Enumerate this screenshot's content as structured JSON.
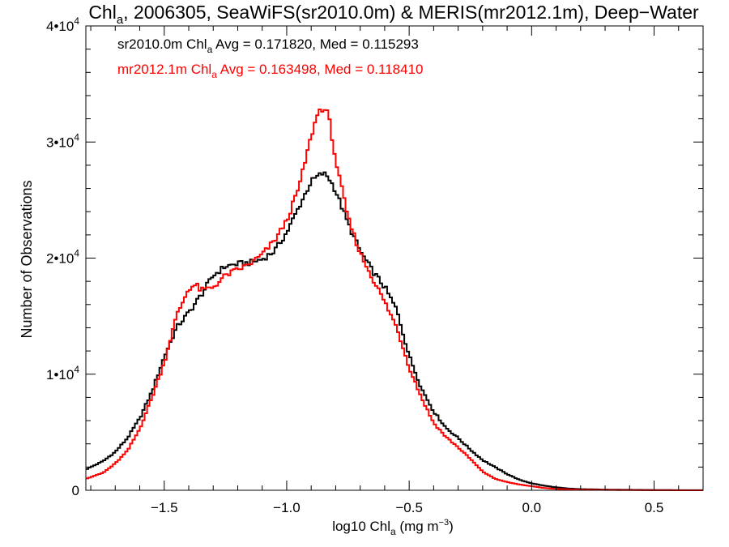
{
  "chart_data": {
    "type": "line",
    "title": {
      "part1": "Chl",
      "sub": "a",
      "part2": ", 2006305, SeaWiFS(sr2010.0m) & MERIS(mr2012.1m), Deep−Water"
    },
    "xlabel": {
      "pre": "log10 Chl",
      "sub": "a",
      "post": " (mg m",
      "sup": "−3",
      "end": ")"
    },
    "ylabel": "Number of Observations",
    "xlim": [
      -1.82,
      0.7
    ],
    "ylim": [
      0,
      40000
    ],
    "xticks": [
      {
        "value": -1.5,
        "label": "−1.5"
      },
      {
        "value": -1.0,
        "label": "−1.0"
      },
      {
        "value": -0.5,
        "label": "−0.5"
      },
      {
        "value": 0.0,
        "label": "0.0"
      },
      {
        "value": 0.5,
        "label": "0.5"
      }
    ],
    "yticks": [
      {
        "value": 0,
        "label": "0",
        "sup": ""
      },
      {
        "value": 10000,
        "label": "1•10",
        "sup": "4"
      },
      {
        "value": 20000,
        "label": "2•10",
        "sup": "4"
      },
      {
        "value": 30000,
        "label": "3•10",
        "sup": "4"
      },
      {
        "value": 40000,
        "label": "4•10",
        "sup": "4"
      }
    ],
    "grid": false,
    "step": 0.01,
    "series": [
      {
        "name": "sr2010.0m",
        "color": "#000000",
        "legend": {
          "pre": "sr2010.0m Chl",
          "sub": "a",
          "post": " Avg = 0.171820, Med = 0.115293"
        },
        "x": [
          -1.82,
          -1.75,
          -1.7,
          -1.65,
          -1.6,
          -1.55,
          -1.5,
          -1.45,
          -1.4,
          -1.35,
          -1.3,
          -1.25,
          -1.2,
          -1.15,
          -1.1,
          -1.05,
          -1.0,
          -0.95,
          -0.9,
          -0.87,
          -0.85,
          -0.83,
          -0.8,
          -0.75,
          -0.7,
          -0.65,
          -0.6,
          -0.55,
          -0.5,
          -0.45,
          -0.4,
          -0.35,
          -0.3,
          -0.25,
          -0.2,
          -0.15,
          -0.1,
          -0.05,
          0.0,
          0.05,
          0.1,
          0.15,
          0.2,
          0.3,
          0.4,
          0.5,
          0.6,
          0.7
        ],
        "y": [
          1800,
          2500,
          3300,
          4500,
          6200,
          8500,
          11500,
          14000,
          15300,
          16800,
          18500,
          19300,
          19500,
          19600,
          19900,
          20600,
          22200,
          24400,
          26600,
          27100,
          27300,
          27000,
          25800,
          23000,
          20600,
          18900,
          17500,
          15500,
          11600,
          8800,
          6800,
          5400,
          4500,
          3500,
          2600,
          2000,
          1400,
          900,
          600,
          400,
          250,
          150,
          100,
          60,
          40,
          20,
          10,
          5
        ]
      },
      {
        "name": "mr2012.1m",
        "color": "#ff0000",
        "legend": {
          "pre": "mr2012.1m Chl",
          "sub": "a",
          "post": " Avg = 0.163498, Med = 0.118410"
        },
        "x": [
          -1.82,
          -1.75,
          -1.7,
          -1.65,
          -1.6,
          -1.55,
          -1.5,
          -1.45,
          -1.4,
          -1.37,
          -1.35,
          -1.3,
          -1.25,
          -1.2,
          -1.15,
          -1.1,
          -1.05,
          -1.0,
          -0.95,
          -0.9,
          -0.87,
          -0.85,
          -0.83,
          -0.8,
          -0.75,
          -0.7,
          -0.65,
          -0.6,
          -0.55,
          -0.5,
          -0.45,
          -0.4,
          -0.35,
          -0.3,
          -0.25,
          -0.2,
          -0.15,
          -0.1,
          -0.05,
          0.0,
          0.05,
          0.1,
          0.15,
          0.2,
          0.3,
          0.4,
          0.5,
          0.6,
          0.7
        ],
        "y": [
          1000,
          1500,
          2300,
          3400,
          5300,
          8000,
          11000,
          15000,
          17400,
          17700,
          17200,
          17500,
          18500,
          19000,
          19500,
          20300,
          21500,
          23200,
          26100,
          30500,
          32700,
          32900,
          32400,
          28400,
          23500,
          20400,
          18300,
          16200,
          14000,
          10600,
          8000,
          5800,
          4600,
          3700,
          2700,
          1600,
          1000,
          700,
          500,
          350,
          200,
          120,
          80,
          50,
          30,
          15,
          8,
          4,
          2
        ]
      }
    ]
  }
}
